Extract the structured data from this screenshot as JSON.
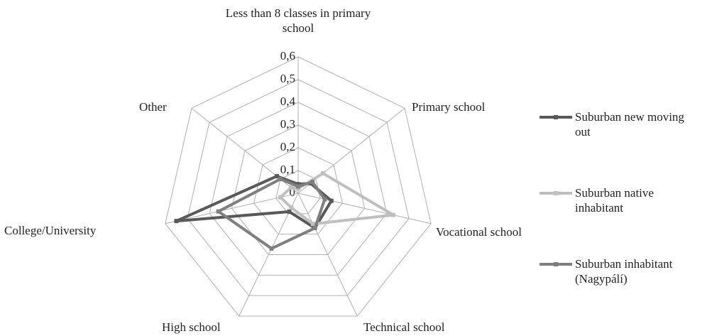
{
  "chart_data": {
    "type": "radar",
    "categories": [
      "Less than 8 classes in primary school",
      "Primary school",
      "Vocational school",
      "Technical school",
      "High school",
      "College/University",
      "Other"
    ],
    "series": [
      {
        "name": "Suburban new moving out",
        "color": "#595959",
        "values": [
          0.04,
          0.07,
          0.15,
          0.17,
          0.09,
          0.55,
          0.12
        ]
      },
      {
        "name": "Suburban native inhabitant",
        "color": "#bfbfbf",
        "values": [
          0.02,
          0.14,
          0.43,
          0.15,
          0.07,
          0.08,
          0.04
        ]
      },
      {
        "name": "Suburban inhabitant (Nagypálí)",
        "color": "#7f7f7f",
        "values": [
          0.03,
          0.08,
          0.12,
          0.17,
          0.27,
          0.36,
          0.1
        ]
      }
    ],
    "ylim": [
      0,
      0.6
    ],
    "yticks": [
      {
        "value": 0,
        "label": "0"
      },
      {
        "value": 0.1,
        "label": "0,1"
      },
      {
        "value": 0.2,
        "label": "0,2"
      },
      {
        "value": 0.3,
        "label": "0,3"
      },
      {
        "value": 0.4,
        "label": "0,4"
      },
      {
        "value": 0.5,
        "label": "0,5"
      },
      {
        "value": 0.6,
        "label": "0,6"
      }
    ],
    "grid": true
  }
}
